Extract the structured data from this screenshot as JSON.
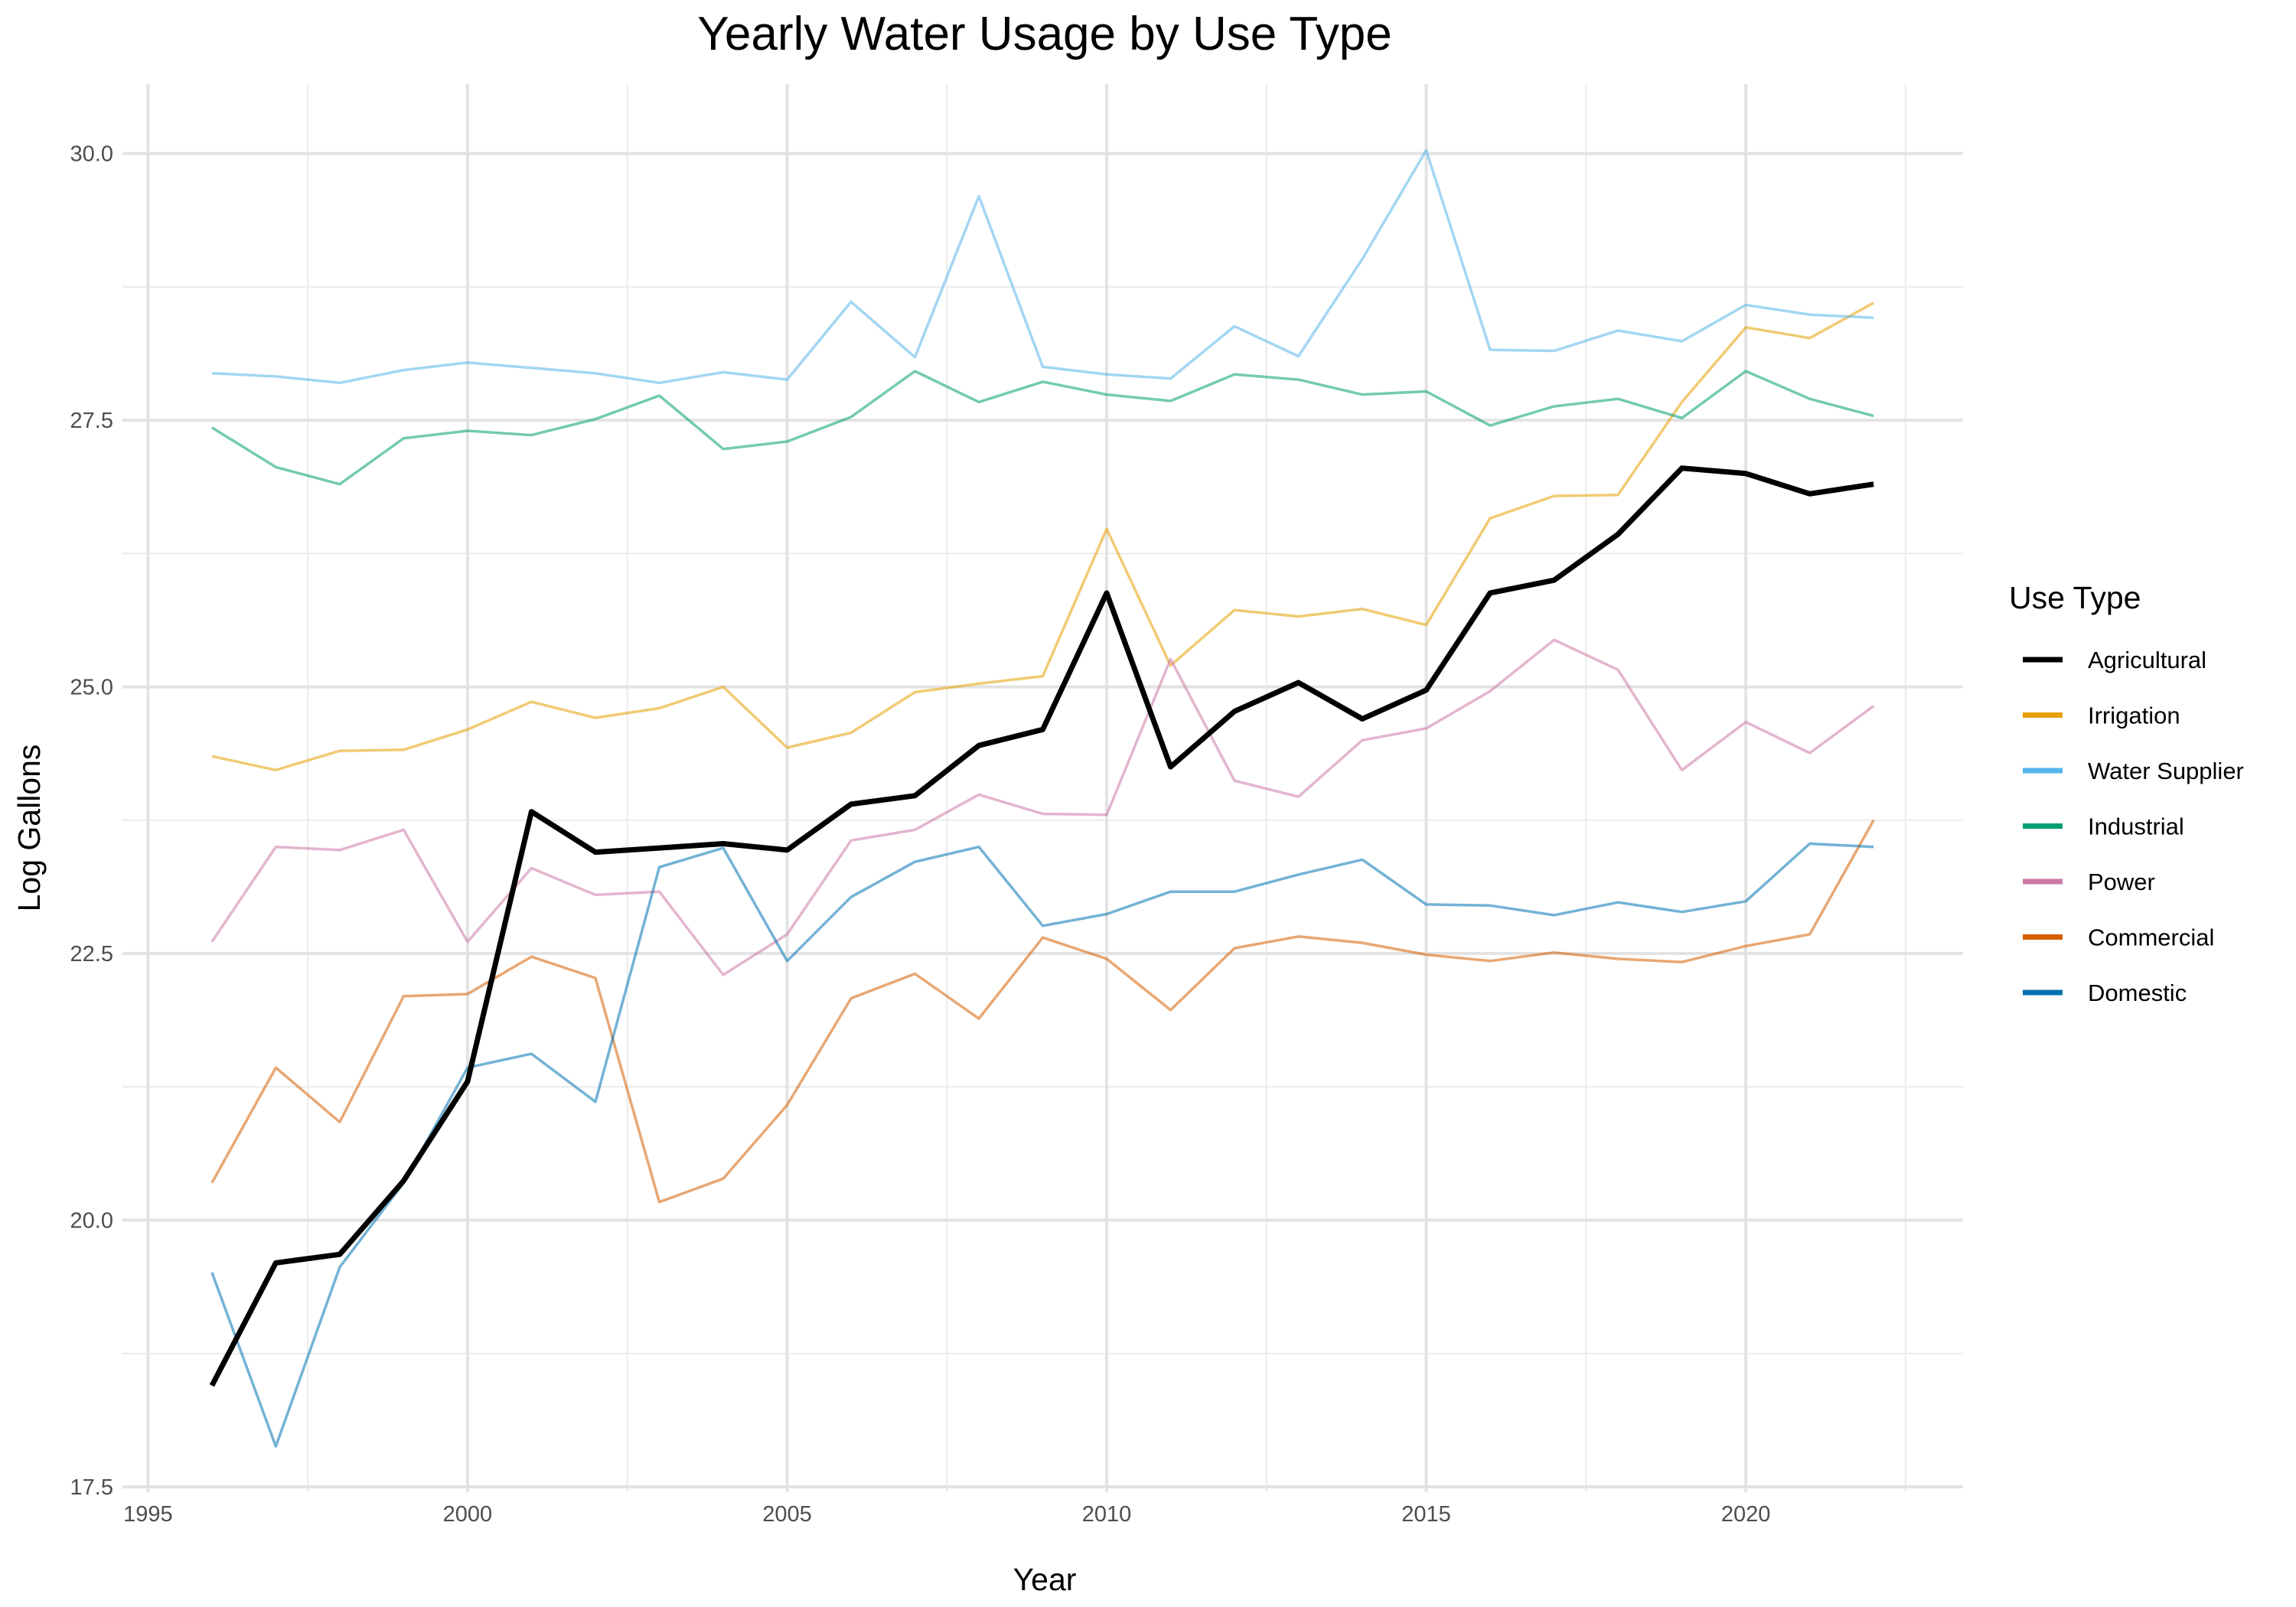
{
  "chart_data": {
    "type": "line",
    "title": "Yearly Water Usage by Use Type",
    "xlabel": "Year",
    "ylabel": "Log Gallons",
    "xlim": [
      1994.6,
      2023.4
    ],
    "ylim": [
      17.45,
      30.65
    ],
    "x_ticks": [
      1995,
      2000,
      2005,
      2010,
      2015,
      2020
    ],
    "y_ticks": [
      17.5,
      20.0,
      22.5,
      25.0,
      27.5,
      30.0
    ],
    "grid": true,
    "legend_position": "right",
    "legend_title": "Use Type",
    "x": [
      1996,
      1997,
      1998,
      1999,
      2000,
      2001,
      2002,
      2003,
      2004,
      2005,
      2006,
      2007,
      2008,
      2009,
      2010,
      2011,
      2012,
      2013,
      2014,
      2015,
      2016,
      2017,
      2018,
      2019,
      2020,
      2021,
      2022
    ],
    "series": [
      {
        "name": "Agricultural",
        "color": "#000000",
        "values": [
          18.45,
          19.6,
          19.68,
          20.37,
          21.3,
          23.83,
          23.45,
          23.49,
          23.53,
          23.47,
          23.9,
          23.98,
          24.45,
          24.6,
          25.88,
          24.25,
          24.77,
          25.04,
          24.7,
          24.97,
          25.88,
          26.0,
          26.43,
          27.05,
          27.0,
          26.81,
          26.9
        ]
      },
      {
        "name": "Irrigation",
        "color": "#E69F00",
        "values": [
          24.35,
          24.22,
          24.4,
          24.41,
          24.6,
          24.86,
          24.71,
          24.8,
          25.0,
          24.43,
          24.57,
          24.95,
          25.03,
          25.1,
          26.48,
          25.2,
          25.72,
          25.66,
          25.73,
          25.58,
          26.58,
          26.79,
          26.8,
          27.67,
          28.37,
          28.27,
          28.6
        ]
      },
      {
        "name": "Water Supplier",
        "color": "#56B4E9",
        "values": [
          27.94,
          27.91,
          27.85,
          27.97,
          28.04,
          27.99,
          27.94,
          27.85,
          27.95,
          27.88,
          28.61,
          28.09,
          29.6,
          28.0,
          27.93,
          27.89,
          28.38,
          28.1,
          29.01,
          30.03,
          28.16,
          28.15,
          28.34,
          28.24,
          28.58,
          28.49,
          28.46
        ]
      },
      {
        "name": "Industrial",
        "color": "#009E73",
        "values": [
          27.43,
          27.06,
          26.9,
          27.33,
          27.4,
          27.36,
          27.51,
          27.73,
          27.23,
          27.3,
          27.53,
          27.96,
          27.67,
          27.86,
          27.74,
          27.68,
          27.93,
          27.88,
          27.74,
          27.77,
          27.45,
          27.63,
          27.7,
          27.52,
          27.96,
          27.7,
          27.54
        ]
      },
      {
        "name": "Power",
        "color": "#CC79A7",
        "values": [
          22.61,
          23.5,
          23.47,
          23.66,
          22.61,
          23.3,
          23.05,
          23.08,
          22.3,
          22.68,
          23.56,
          23.66,
          23.99,
          23.81,
          23.8,
          25.26,
          24.12,
          23.97,
          24.5,
          24.61,
          24.96,
          25.44,
          25.16,
          24.22,
          24.67,
          24.38,
          24.82
        ]
      },
      {
        "name": "Commercial",
        "color": "#D55E00",
        "values": [
          20.35,
          21.43,
          20.92,
          22.1,
          22.12,
          22.47,
          22.27,
          20.17,
          20.39,
          21.08,
          22.08,
          22.31,
          21.89,
          22.65,
          22.45,
          21.97,
          22.55,
          22.66,
          22.6,
          22.49,
          22.43,
          22.51,
          22.45,
          22.42,
          22.57,
          22.68,
          23.75
        ]
      },
      {
        "name": "Domestic",
        "color": "#0072B2",
        "values": [
          19.51,
          17.88,
          19.56,
          20.35,
          21.43,
          21.56,
          21.11,
          23.31,
          23.49,
          22.43,
          23.03,
          23.36,
          23.5,
          22.76,
          22.87,
          23.08,
          23.08,
          23.24,
          23.38,
          22.96,
          22.95,
          22.86,
          22.98,
          22.89,
          22.99,
          23.53,
          23.5
        ]
      }
    ]
  }
}
